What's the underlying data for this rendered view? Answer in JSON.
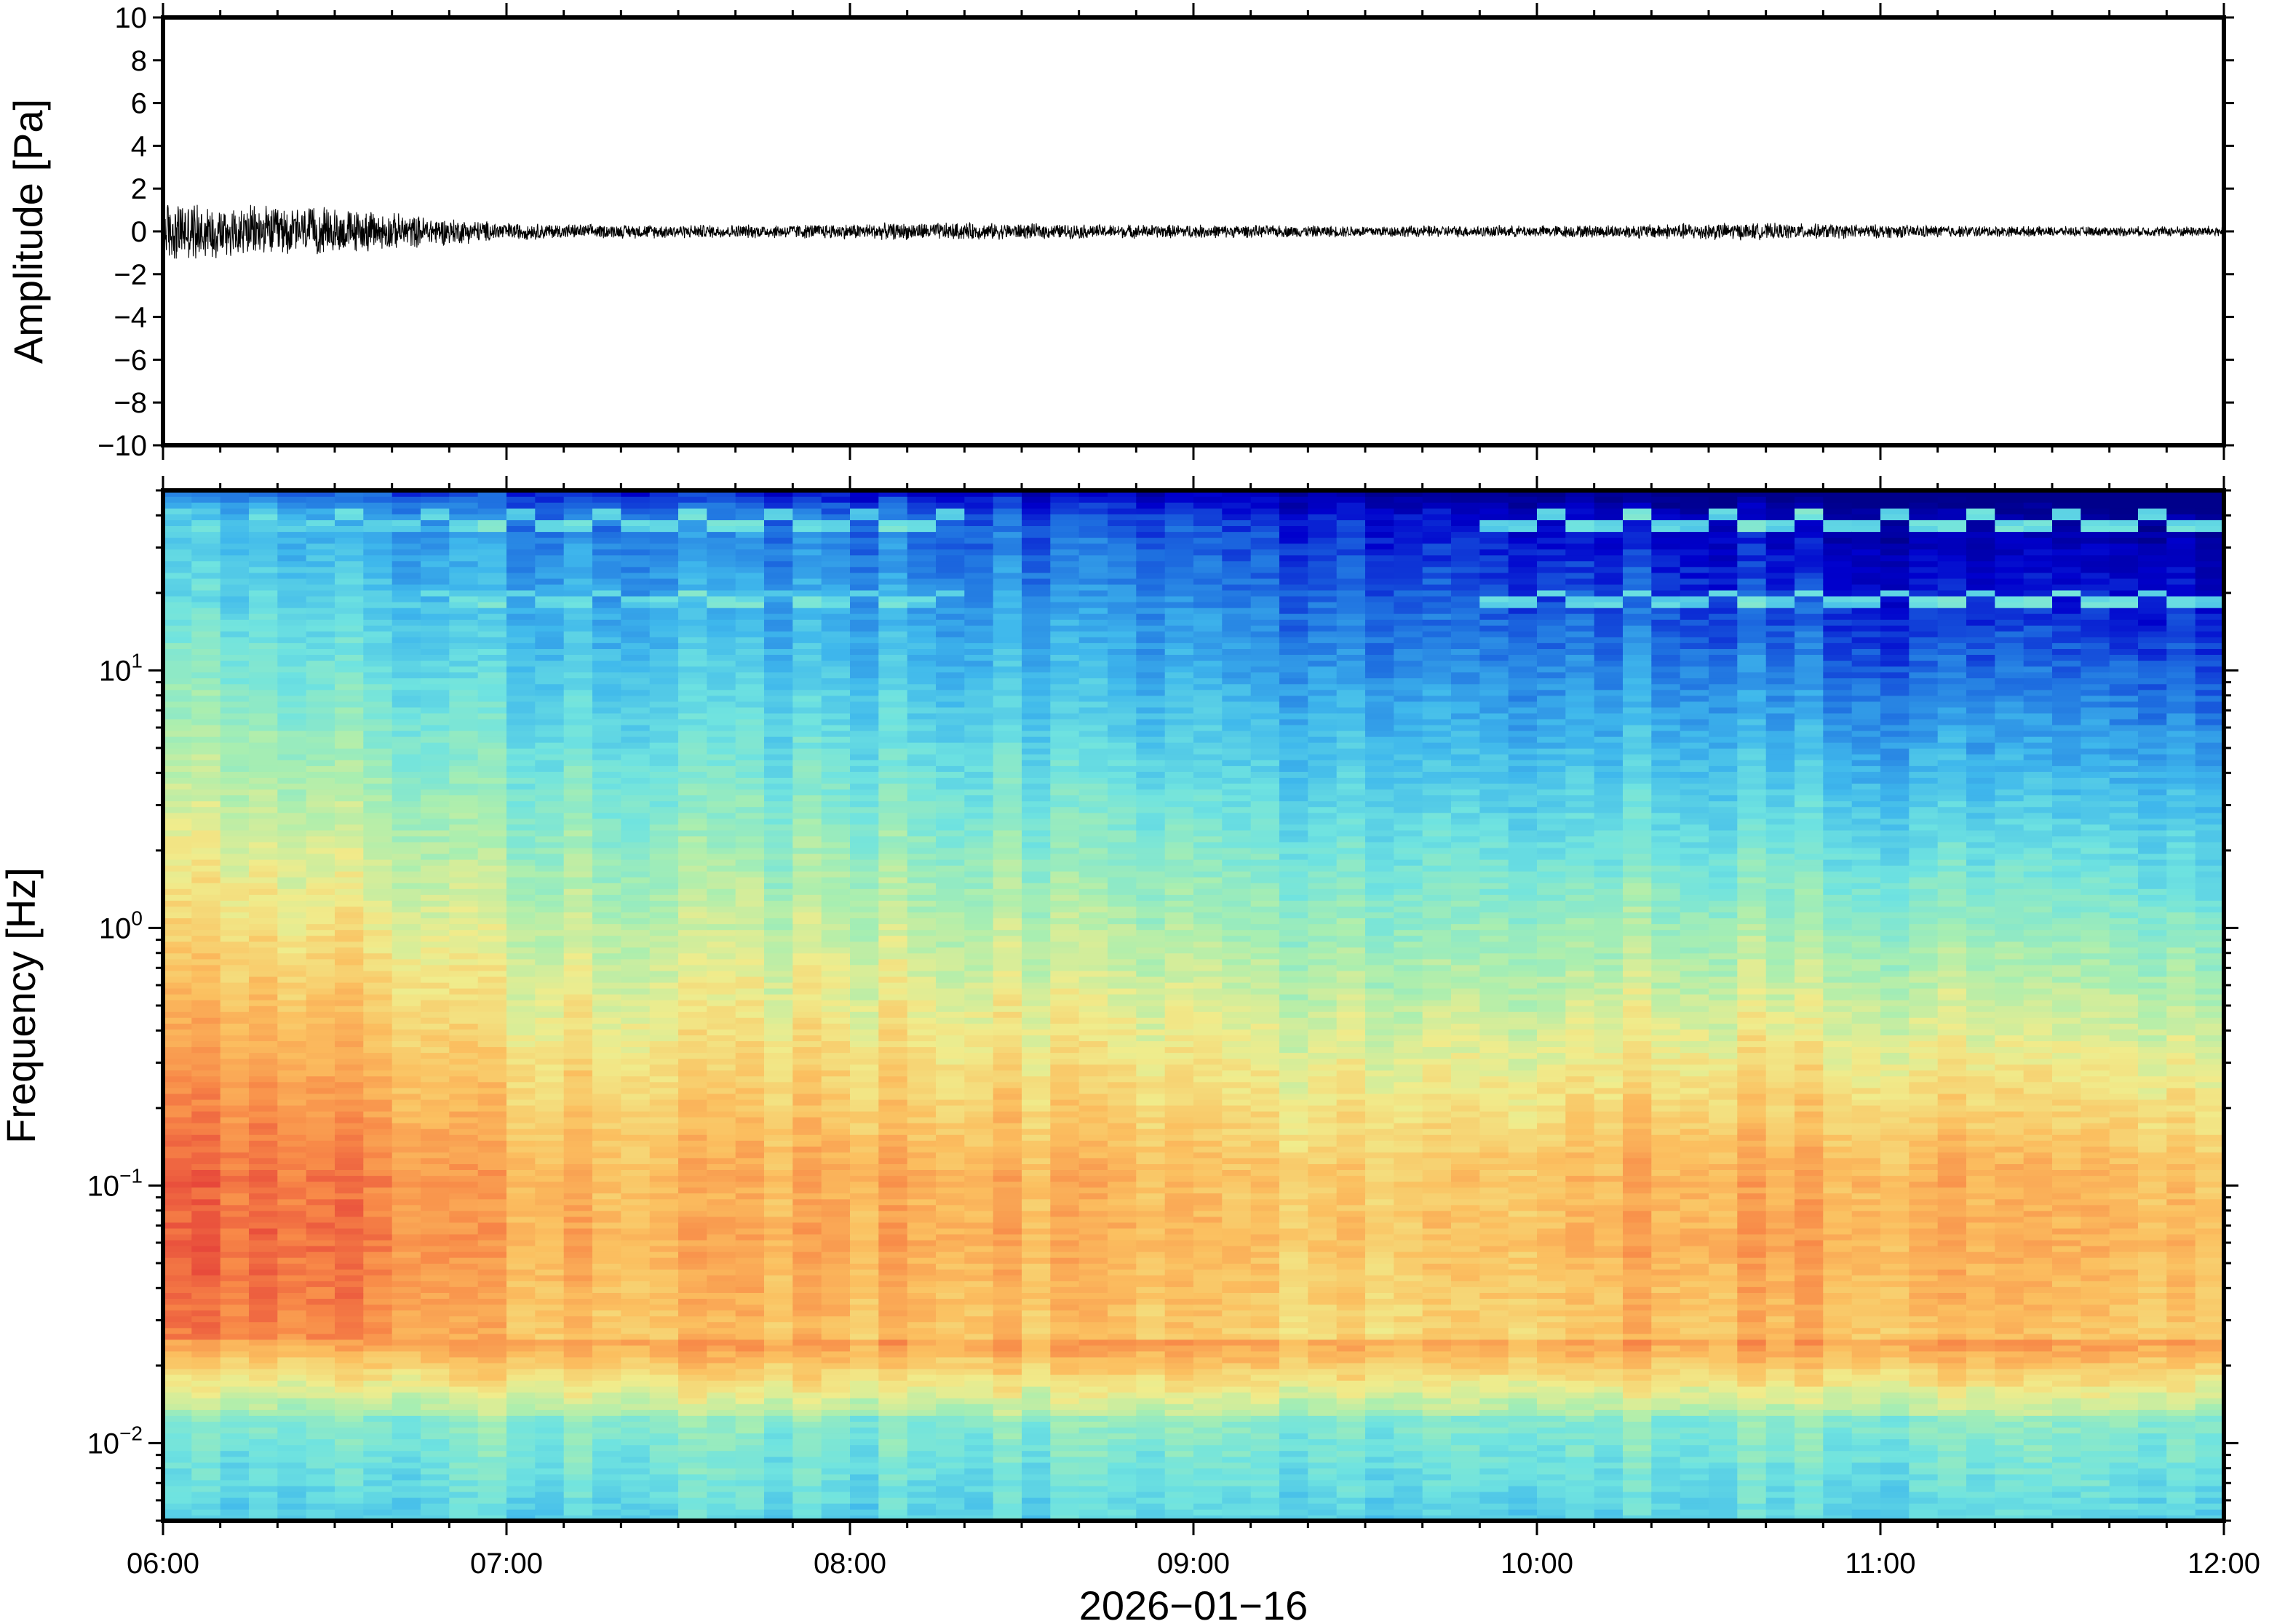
{
  "chart_data": [
    {
      "type": "line",
      "panel": "waveform",
      "ylabel": "Amplitude [Pa]",
      "ylim": [
        -10,
        10
      ],
      "yticks": [
        10,
        8,
        6,
        4,
        2,
        0,
        -2,
        -4,
        -6,
        -8,
        -10
      ],
      "ytick_labels": [
        "10",
        "8",
        "6",
        "4",
        "2",
        "0",
        "−2",
        "−4",
        "−6",
        "−8",
        "−10"
      ],
      "xlim": [
        "06:00",
        "12:00"
      ],
      "series": [
        {
          "color": "#000000",
          "envelope_times": [
            "06:00",
            "06:15",
            "06:30",
            "06:45",
            "07:00",
            "07:15",
            "07:30",
            "07:45",
            "08:00",
            "08:15",
            "08:30",
            "08:45",
            "09:00",
            "09:15",
            "09:30",
            "09:45",
            "10:00",
            "10:15",
            "10:30",
            "10:45",
            "11:00",
            "11:15",
            "11:30",
            "11:45",
            "12:00"
          ],
          "envelope_amplitude": [
            1.6,
            1.3,
            1.2,
            0.8,
            0.45,
            0.35,
            0.35,
            0.35,
            0.4,
            0.45,
            0.4,
            0.35,
            0.35,
            0.3,
            0.3,
            0.3,
            0.3,
            0.35,
            0.45,
            0.4,
            0.35,
            0.3,
            0.25,
            0.25,
            0.3
          ]
        }
      ]
    },
    {
      "type": "heatmap",
      "panel": "spectrogram",
      "ylabel": "Frequency [Hz]",
      "xlabel": "2026−01−16",
      "y_scale": "log",
      "ylim_hz": [
        0.005,
        50
      ],
      "yticks": [
        {
          "base": "10",
          "exp": "1",
          "value": 10
        },
        {
          "base": "10",
          "exp": "0",
          "value": 1
        },
        {
          "base": "10",
          "exp": "−1",
          "value": 0.1
        },
        {
          "base": "10",
          "exp": "−2",
          "value": 0.01
        }
      ],
      "xticks": [
        "06:00",
        "07:00",
        "08:00",
        "09:00",
        "10:00",
        "11:00",
        "12:00"
      ],
      "colormap": "jet",
      "color_stops": [
        "#00008b",
        "#0000cd",
        "#1e6fe0",
        "#3fb8ec",
        "#6fe3e0",
        "#a9eeb0",
        "#f0ec8c",
        "#fbc060",
        "#f88a48",
        "#e6453a"
      ],
      "narrowband_lines_hz": [
        19,
        38
      ],
      "narrowband_active": [
        [
          "06:00",
          "08:20"
        ],
        [
          "09:52",
          "12:00"
        ]
      ],
      "description_profile": {
        "times": [
          "06:00",
          "06:30",
          "07:00",
          "07:30",
          "08:00",
          "08:30",
          "09:00",
          "09:30",
          "10:00",
          "10:30",
          "11:00",
          "11:30",
          "12:00"
        ],
        "peak_intensity": [
          0.97,
          0.95,
          0.82,
          0.8,
          0.83,
          0.82,
          0.78,
          0.77,
          0.8,
          0.83,
          0.82,
          0.8,
          0.79
        ],
        "high_freq_intensity": [
          0.45,
          0.4,
          0.32,
          0.3,
          0.3,
          0.28,
          0.24,
          0.22,
          0.2,
          0.18,
          0.14,
          0.12,
          0.12
        ]
      }
    }
  ]
}
